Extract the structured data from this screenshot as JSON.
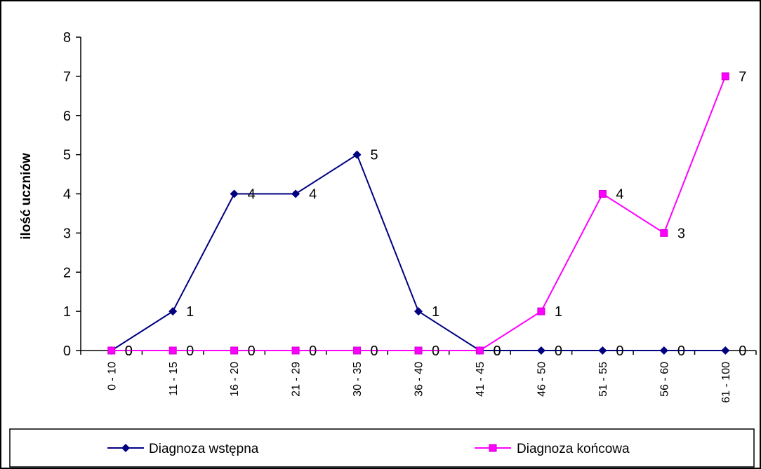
{
  "chart_data": {
    "type": "line",
    "title": "",
    "xlabel": "",
    "ylabel": "ilość uczniów",
    "categories": [
      "0 - 10",
      "11 - 15",
      "16 - 20",
      "21 - 29",
      "30 - 35",
      "36 - 40",
      "41 - 45",
      "46 - 50",
      "51 - 55",
      "56 - 60",
      "61 - 100"
    ],
    "ylim": [
      0,
      8
    ],
    "yticks": [
      0,
      1,
      2,
      3,
      4,
      5,
      6,
      7,
      8
    ],
    "grid": false,
    "legend_position": "bottom",
    "series": [
      {
        "name": "Diagnoza wstępna",
        "color": "#000080",
        "marker": "diamond",
        "values": [
          0,
          1,
          4,
          4,
          5,
          1,
          0,
          0,
          0,
          0,
          0
        ]
      },
      {
        "name": "Diagnoza końcowa",
        "color": "#ff00ff",
        "marker": "square",
        "values": [
          0,
          0,
          0,
          0,
          0,
          0,
          0,
          1,
          4,
          3,
          7
        ]
      }
    ]
  }
}
